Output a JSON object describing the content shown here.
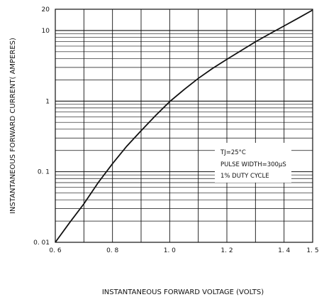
{
  "chart_data": {
    "type": "line",
    "xlabel": "INSTANTANEOUS FORWARD VOLTAGE (VOLTS)",
    "ylabel": "INSTANTANEOUS FORWARD CURRENT( AMPERES)",
    "xlim": [
      0.6,
      1.5
    ],
    "ylim": [
      0.01,
      20
    ],
    "y_scale": "log",
    "grid": true,
    "x_ticks": [
      {
        "value": 0.6,
        "label": "0. 6"
      },
      {
        "value": 0.8,
        "label": "0. 8"
      },
      {
        "value": 1.0,
        "label": "1. 0"
      },
      {
        "value": 1.2,
        "label": "1. 2"
      },
      {
        "value": 1.4,
        "label": "1. 4"
      },
      {
        "value": 1.5,
        "label": "1. 5"
      }
    ],
    "y_ticks": [
      {
        "value": 0.01,
        "label": "0. 01"
      },
      {
        "value": 0.1,
        "label": "0. 1"
      },
      {
        "value": 1,
        "label": "1"
      },
      {
        "value": 10,
        "label": "10"
      },
      {
        "value": 20,
        "label": "20"
      }
    ],
    "annotations": [
      "TJ=25°C",
      "PULSE WIDTH=300µS",
      "1% DUTY CYCLE"
    ],
    "series": [
      {
        "x": [
          0.6,
          0.65,
          0.7,
          0.75,
          0.8,
          0.85,
          0.9,
          0.95,
          1.0,
          1.05,
          1.1,
          1.15,
          1.2,
          1.25,
          1.3,
          1.35,
          1.4,
          1.45,
          1.5
        ],
        "y": [
          0.01,
          0.019,
          0.035,
          0.07,
          0.13,
          0.23,
          0.38,
          0.62,
          0.98,
          1.45,
          2.1,
          2.9,
          3.9,
          5.2,
          6.9,
          9.0,
          11.6,
          15.0,
          19.5
        ]
      }
    ]
  }
}
